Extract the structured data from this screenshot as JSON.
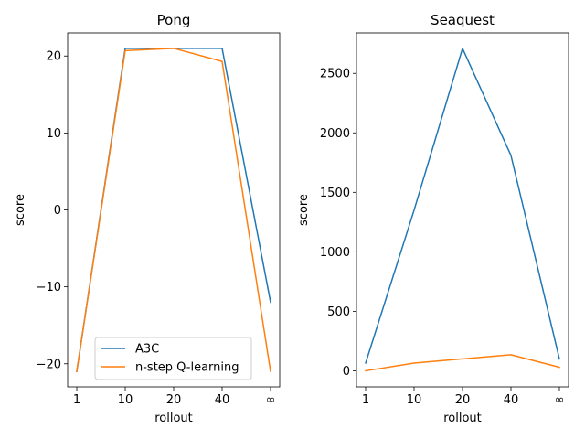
{
  "chart_data": [
    {
      "type": "line",
      "title": "Pong",
      "xlabel": "rollout",
      "ylabel": "score",
      "categories": [
        "1",
        "10",
        "20",
        "40",
        "∞"
      ],
      "ylim": [
        -23,
        23
      ],
      "yticks": [
        -20,
        -10,
        0,
        10,
        20
      ],
      "ytick_labels": [
        "−20",
        "−10",
        "0",
        "10",
        "20"
      ],
      "legend_position": "lower-center",
      "series": [
        {
          "name": "A3C",
          "color": "#1f77b4",
          "values": [
            -21,
            21,
            21,
            21,
            -12
          ]
        },
        {
          "name": "n-step Q-learning",
          "color": "#ff7f0e",
          "values": [
            -21,
            20.7,
            21,
            19.3,
            -21
          ]
        }
      ]
    },
    {
      "type": "line",
      "title": "Seaquest",
      "xlabel": "rollout",
      "ylabel": "score",
      "categories": [
        "1",
        "10",
        "20",
        "40",
        "∞"
      ],
      "ylim": [
        -135,
        2840
      ],
      "yticks": [
        0,
        500,
        1000,
        1500,
        2000,
        2500
      ],
      "ytick_labels": [
        "0",
        "500",
        "1000",
        "1500",
        "2000",
        "2500"
      ],
      "series": [
        {
          "color": "#1f77b4",
          "values": [
            65,
            1350,
            2710,
            1810,
            100
          ]
        },
        {
          "color": "#ff7f0e",
          "values": [
            0,
            65,
            100,
            135,
            30
          ]
        }
      ]
    }
  ]
}
